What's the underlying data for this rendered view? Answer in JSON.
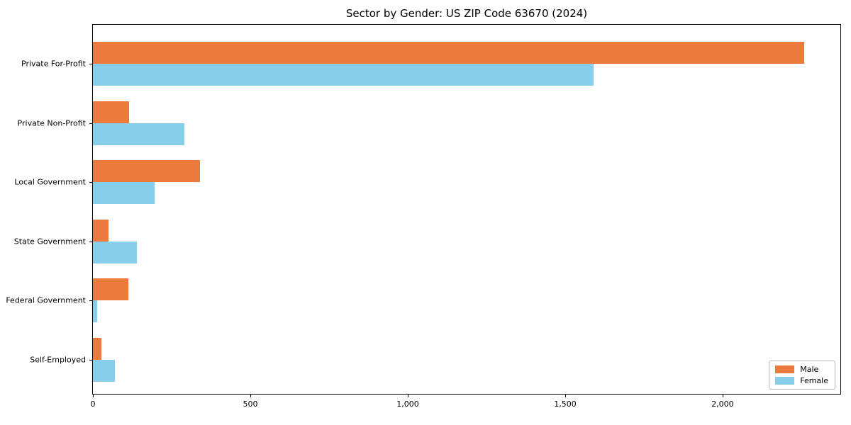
{
  "chart_data": {
    "type": "bar",
    "orientation": "horizontal",
    "title": "Sector by Gender: US ZIP Code 63670 (2024)",
    "categories": [
      "Private For-Profit",
      "Private Non-Profit",
      "Local Government",
      "State Government",
      "Federal Government",
      "Self-Employed"
    ],
    "series": [
      {
        "name": "Male",
        "color": "#EB7A3C",
        "values": [
          2260,
          115,
          340,
          50,
          112,
          27
        ]
      },
      {
        "name": "Female",
        "color": "#87CEEB",
        "values": [
          1590,
          290,
          195,
          140,
          13,
          70
        ]
      }
    ],
    "xlim": [
      0,
      2374
    ],
    "xticks": [
      {
        "value": 0,
        "label": "0"
      },
      {
        "value": 500,
        "label": "500"
      },
      {
        "value": 1000,
        "label": "1,000"
      },
      {
        "value": 1500,
        "label": "1,500"
      },
      {
        "value": 2000,
        "label": "2,000"
      }
    ],
    "ylabel": "",
    "xlabel": "",
    "grid": false,
    "legend_position": "lower right"
  }
}
